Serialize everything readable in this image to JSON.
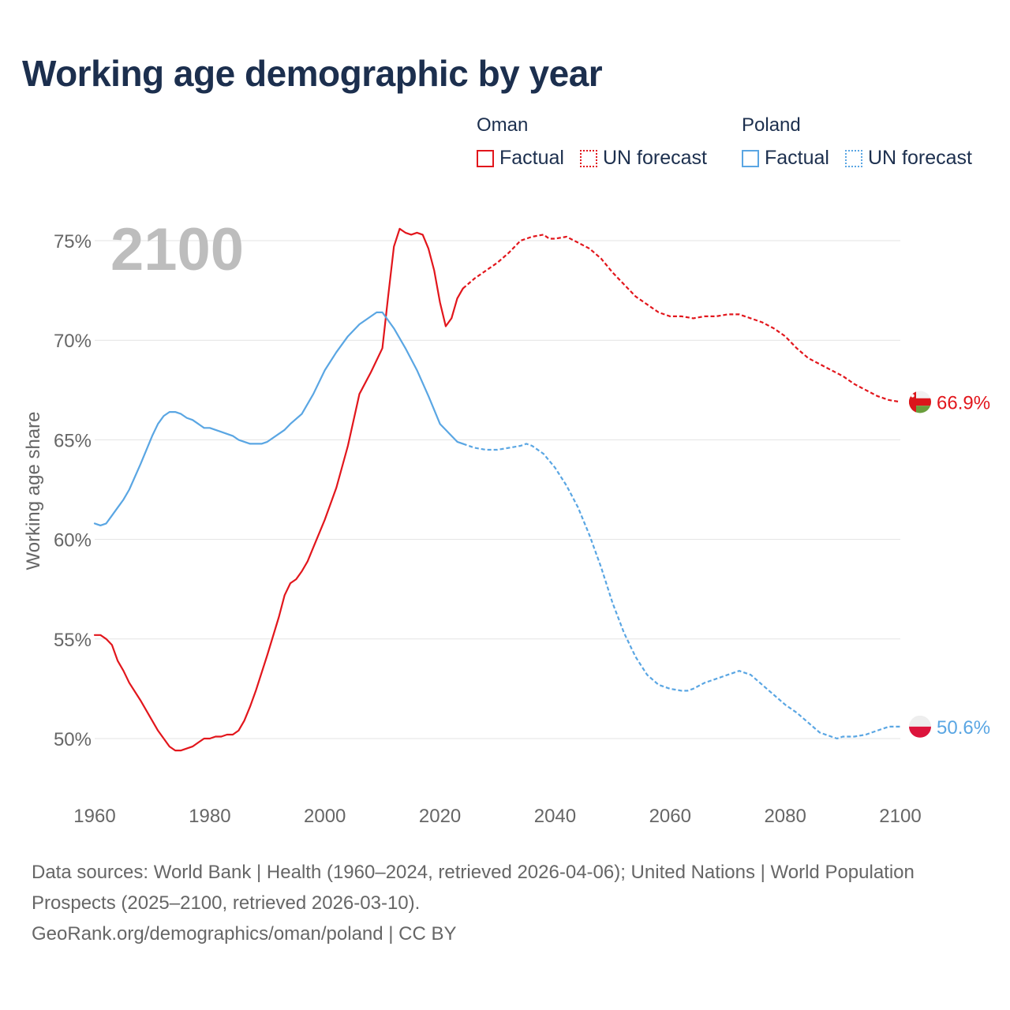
{
  "title": "Working age demographic by year",
  "legend": [
    {
      "country": "Oman",
      "factual": "Factual",
      "forecast": "UN forecast",
      "color": "#e2161c"
    },
    {
      "country": "Poland",
      "factual": "Factual",
      "forecast": "UN forecast",
      "color": "#5aa6e3"
    }
  ],
  "year_watermark": "2100",
  "footer": {
    "sources": "Data sources: World Bank | Health (1960–2024, retrieved 2026-04-06); United Nations | World Population Prospects (2025–2100, retrieved 2026-03-10).",
    "attribution": "GeoRank.org/demographics/oman/poland | CC BY"
  },
  "chart_data": {
    "type": "line",
    "title": "Working age demographic by year",
    "xlabel": "",
    "ylabel": "Working age share",
    "xlim": [
      1960,
      2100
    ],
    "ylim": [
      47,
      77
    ],
    "x_ticks": [
      1960,
      1980,
      2000,
      2020,
      2040,
      2060,
      2080,
      2100
    ],
    "x_tick_labels": [
      "1960",
      "1980",
      "2000",
      "2020",
      "2040",
      "2060",
      "2080",
      "2100"
    ],
    "y_ticks": [
      50,
      55,
      60,
      65,
      70,
      75
    ],
    "y_tick_labels": [
      "50%",
      "55%",
      "60%",
      "65%",
      "70%",
      "75%"
    ],
    "grid": true,
    "series": [
      {
        "name": "Oman",
        "color": "#e2161c",
        "end_label": "66.9%",
        "factual": {
          "x": [
            1960,
            1961,
            1962,
            1963,
            1964,
            1965,
            1966,
            1968,
            1970,
            1971,
            1972,
            1973,
            1974,
            1975,
            1976,
            1977,
            1978,
            1979,
            1980,
            1981,
            1982,
            1983,
            1984,
            1985,
            1986,
            1987,
            1988,
            1990,
            1992,
            1993,
            1994,
            1995,
            1996,
            1997,
            1998,
            2000,
            2002,
            2004,
            2006,
            2008,
            2010,
            2011,
            2012,
            2013,
            2014,
            2015,
            2016,
            2017,
            2018,
            2019,
            2020,
            2021,
            2022,
            2023,
            2024
          ],
          "y": [
            55.2,
            55.2,
            55.0,
            54.7,
            53.9,
            53.4,
            52.8,
            51.9,
            50.9,
            50.4,
            50.0,
            49.6,
            49.4,
            49.4,
            49.5,
            49.6,
            49.8,
            50.0,
            50.0,
            50.1,
            50.1,
            50.2,
            50.2,
            50.4,
            50.9,
            51.6,
            52.4,
            54.2,
            56.1,
            57.2,
            57.8,
            58.0,
            58.4,
            58.9,
            59.6,
            61.0,
            62.6,
            64.7,
            67.3,
            68.4,
            69.6,
            72.2,
            74.7,
            75.6,
            75.4,
            75.3,
            75.4,
            75.3,
            74.6,
            73.5,
            71.9,
            70.7,
            71.1,
            72.1,
            72.6
          ],
          "style": "solid"
        },
        "forecast": {
          "x": [
            2024,
            2026,
            2028,
            2030,
            2032,
            2034,
            2036,
            2038,
            2039,
            2040,
            2042,
            2044,
            2046,
            2048,
            2050,
            2052,
            2054,
            2056,
            2058,
            2060,
            2062,
            2064,
            2066,
            2068,
            2070,
            2072,
            2074,
            2076,
            2078,
            2080,
            2082,
            2084,
            2086,
            2088,
            2090,
            2092,
            2094,
            2096,
            2098,
            2100
          ],
          "y": [
            72.6,
            73.1,
            73.5,
            73.9,
            74.4,
            75.0,
            75.2,
            75.3,
            75.1,
            75.1,
            75.2,
            74.9,
            74.6,
            74.1,
            73.4,
            72.8,
            72.2,
            71.8,
            71.4,
            71.2,
            71.2,
            71.1,
            71.2,
            71.2,
            71.3,
            71.3,
            71.1,
            70.9,
            70.6,
            70.2,
            69.6,
            69.1,
            68.8,
            68.5,
            68.2,
            67.8,
            67.5,
            67.2,
            67.0,
            66.9
          ],
          "style": "dotted"
        }
      },
      {
        "name": "Poland",
        "color": "#5aa6e3",
        "end_label": "50.6%",
        "factual": {
          "x": [
            1960,
            1961,
            1962,
            1963,
            1964,
            1965,
            1966,
            1968,
            1970,
            1971,
            1972,
            1973,
            1974,
            1975,
            1976,
            1977,
            1978,
            1979,
            1980,
            1981,
            1982,
            1984,
            1985,
            1986,
            1987,
            1988,
            1989,
            1990,
            1992,
            1993,
            1994,
            1996,
            1998,
            2000,
            2002,
            2004,
            2006,
            2008,
            2009,
            2010,
            2011,
            2012,
            2013,
            2014,
            2016,
            2018,
            2020,
            2021,
            2022,
            2023,
            2024
          ],
          "y": [
            60.8,
            60.7,
            60.8,
            61.2,
            61.6,
            62.0,
            62.5,
            63.8,
            65.2,
            65.8,
            66.2,
            66.4,
            66.4,
            66.3,
            66.1,
            66.0,
            65.8,
            65.6,
            65.6,
            65.5,
            65.4,
            65.2,
            65.0,
            64.9,
            64.8,
            64.8,
            64.8,
            64.9,
            65.3,
            65.5,
            65.8,
            66.3,
            67.3,
            68.5,
            69.4,
            70.2,
            70.8,
            71.2,
            71.4,
            71.4,
            71.0,
            70.6,
            70.1,
            69.6,
            68.5,
            67.2,
            65.8,
            65.5,
            65.2,
            64.9,
            64.8
          ],
          "style": "solid"
        },
        "forecast": {
          "x": [
            2024,
            2026,
            2028,
            2030,
            2032,
            2034,
            2035,
            2036,
            2038,
            2040,
            2042,
            2044,
            2046,
            2048,
            2050,
            2052,
            2054,
            2056,
            2058,
            2060,
            2062,
            2063,
            2064,
            2066,
            2068,
            2070,
            2072,
            2074,
            2076,
            2078,
            2080,
            2082,
            2084,
            2086,
            2088,
            2089,
            2090,
            2092,
            2094,
            2096,
            2098,
            2100
          ],
          "y": [
            64.8,
            64.6,
            64.5,
            64.5,
            64.6,
            64.7,
            64.8,
            64.7,
            64.3,
            63.6,
            62.7,
            61.6,
            60.2,
            58.6,
            56.8,
            55.3,
            54.1,
            53.2,
            52.7,
            52.5,
            52.4,
            52.4,
            52.5,
            52.8,
            53.0,
            53.2,
            53.4,
            53.2,
            52.7,
            52.2,
            51.7,
            51.3,
            50.8,
            50.3,
            50.1,
            50.0,
            50.1,
            50.1,
            50.2,
            50.4,
            50.6,
            50.6
          ],
          "style": "dotted"
        }
      }
    ]
  }
}
